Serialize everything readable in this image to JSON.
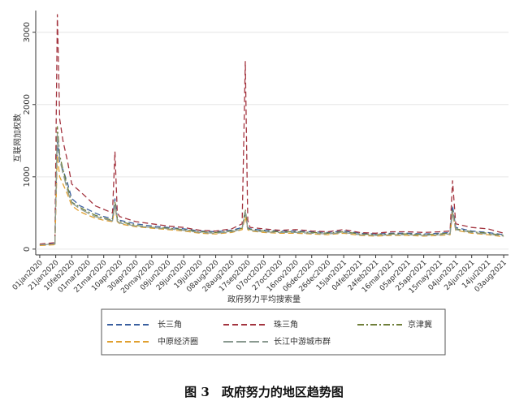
{
  "chart_data": {
    "type": "line",
    "y_label": "互联网加权数",
    "x_label": "政府努力平均搜索量",
    "caption": "图 3　政府努力的地区趋势图",
    "x": [
      "2020-01-01",
      "2020-01-10",
      "2020-01-20",
      "2020-01-23",
      "2020-01-26",
      "2020-01-30",
      "2020-02-05",
      "2020-02-10",
      "2020-02-20",
      "2020-03-01",
      "2020-03-10",
      "2020-03-21",
      "2020-04-01",
      "2020-04-04",
      "2020-04-07",
      "2020-04-10",
      "2020-04-30",
      "2020-05-20",
      "2020-06-09",
      "2020-06-29",
      "2020-07-19",
      "2020-08-08",
      "2020-08-28",
      "2020-09-10",
      "2020-09-14",
      "2020-09-17",
      "2020-09-20",
      "2020-10-07",
      "2020-10-27",
      "2020-11-16",
      "2020-12-06",
      "2020-12-26",
      "2021-01-15",
      "2021-02-04",
      "2021-02-24",
      "2021-03-16",
      "2021-04-05",
      "2021-04-25",
      "2021-05-15",
      "2021-05-28",
      "2021-05-31",
      "2021-06-04",
      "2021-06-24",
      "2021-07-14",
      "2021-08-03"
    ],
    "series": [
      {
        "name": "长三角",
        "color": "#3a5f9f",
        "style": "dash",
        "values": [
          60,
          70,
          80,
          1500,
          1200,
          1100,
          900,
          700,
          600,
          550,
          500,
          450,
          420,
          700,
          420,
          400,
          350,
          320,
          300,
          280,
          250,
          240,
          260,
          300,
          500,
          300,
          280,
          260,
          250,
          250,
          240,
          230,
          250,
          220,
          210,
          220,
          220,
          210,
          220,
          230,
          600,
          300,
          250,
          230,
          200
        ]
      },
      {
        "name": "珠三角",
        "color": "#a3343f",
        "style": "dash",
        "values": [
          70,
          80,
          90,
          3250,
          1800,
          1500,
          1200,
          900,
          800,
          700,
          600,
          550,
          500,
          1350,
          500,
          450,
          380,
          350,
          320,
          300,
          260,
          250,
          280,
          350,
          2600,
          400,
          300,
          280,
          260,
          270,
          250,
          240,
          270,
          230,
          220,
          240,
          240,
          230,
          240,
          250,
          950,
          350,
          300,
          280,
          220
        ]
      },
      {
        "name": "京津冀",
        "color": "#6f7f3a",
        "style": "dashdot",
        "values": [
          55,
          60,
          70,
          1700,
          1300,
          1100,
          850,
          650,
          580,
          520,
          470,
          430,
          400,
          650,
          410,
          380,
          330,
          300,
          290,
          270,
          240,
          230,
          250,
          290,
          550,
          290,
          270,
          250,
          240,
          240,
          230,
          220,
          240,
          210,
          200,
          210,
          210,
          200,
          210,
          220,
          550,
          280,
          240,
          220,
          190
        ]
      },
      {
        "name": "中原经济圈",
        "color": "#e0a030",
        "style": "dash",
        "values": [
          50,
          55,
          60,
          1300,
          1000,
          900,
          750,
          600,
          520,
          470,
          430,
          400,
          380,
          600,
          380,
          350,
          310,
          290,
          270,
          250,
          220,
          210,
          230,
          270,
          450,
          270,
          250,
          230,
          220,
          220,
          210,
          200,
          220,
          190,
          180,
          190,
          190,
          180,
          190,
          200,
          500,
          260,
          220,
          200,
          170
        ]
      },
      {
        "name": "长江中游城市群",
        "color": "#8a9a90",
        "style": "longdash",
        "values": [
          60,
          65,
          75,
          1600,
          1250,
          1050,
          800,
          640,
          560,
          500,
          450,
          420,
          390,
          620,
          390,
          360,
          320,
          300,
          280,
          260,
          230,
          220,
          240,
          280,
          520,
          280,
          260,
          240,
          230,
          230,
          220,
          210,
          230,
          200,
          190,
          200,
          200,
          190,
          200,
          210,
          520,
          270,
          230,
          210,
          180
        ]
      }
    ],
    "xlim": [
      "2019-12-27",
      "2021-08-09"
    ],
    "xticks": [
      {
        "value": "2020-01-01",
        "label": "01jan2020"
      },
      {
        "value": "2020-01-21",
        "label": "21jan2020"
      },
      {
        "value": "2020-02-10",
        "label": "10feb2020"
      },
      {
        "value": "2020-03-01",
        "label": "01mar2020"
      },
      {
        "value": "2020-03-21",
        "label": "21mar2020"
      },
      {
        "value": "2020-04-10",
        "label": "10apr2020"
      },
      {
        "value": "2020-04-30",
        "label": "30apr2020"
      },
      {
        "value": "2020-05-20",
        "label": "20may2020"
      },
      {
        "value": "2020-06-09",
        "label": "09jun2020"
      },
      {
        "value": "2020-06-29",
        "label": "29jun2020"
      },
      {
        "value": "2020-07-19",
        "label": "19jul2020"
      },
      {
        "value": "2020-08-08",
        "label": "08aug2020"
      },
      {
        "value": "2020-08-28",
        "label": "28aug2020"
      },
      {
        "value": "2020-09-17",
        "label": "17sep2020"
      },
      {
        "value": "2020-10-07",
        "label": "07oct2020"
      },
      {
        "value": "2020-10-27",
        "label": "27oct2020"
      },
      {
        "value": "2020-11-16",
        "label": "16nov2020"
      },
      {
        "value": "2020-12-06",
        "label": "06dec2020"
      },
      {
        "value": "2020-12-26",
        "label": "26dec2020"
      },
      {
        "value": "2021-01-15",
        "label": "15jan2021"
      },
      {
        "value": "2021-02-04",
        "label": "04feb2021"
      },
      {
        "value": "2021-02-24",
        "label": "24feb2021"
      },
      {
        "value": "2021-03-16",
        "label": "16mar2021"
      },
      {
        "value": "2021-04-05",
        "label": "05apr2021"
      },
      {
        "value": "2021-04-25",
        "label": "25apr2021"
      },
      {
        "value": "2021-05-15",
        "label": "15may2021"
      },
      {
        "value": "2021-06-04",
        "label": "04jun2021"
      },
      {
        "value": "2021-06-24",
        "label": "24jun2021"
      },
      {
        "value": "2021-07-14",
        "label": "14jul2021"
      },
      {
        "value": "2021-08-03",
        "label": "03aug2021"
      }
    ],
    "ylim": [
      -80,
      3300
    ],
    "yticks": [
      0,
      1000,
      2000,
      3000
    ],
    "grid": true
  }
}
